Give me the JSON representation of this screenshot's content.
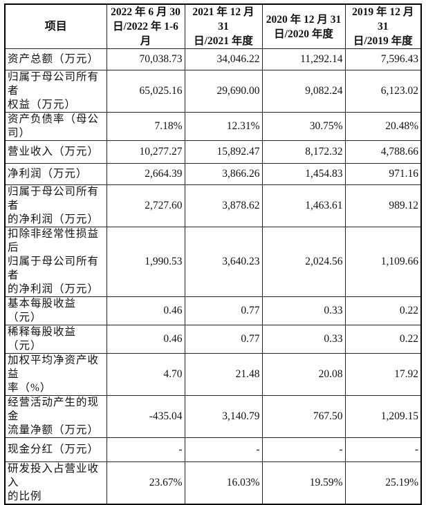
{
  "header": {
    "item": "项目",
    "periods": [
      [
        "2022 年 6 月 30",
        "日/2022 年 1-6 月"
      ],
      [
        "2021 年 12 月 31",
        "日/2021 年度"
      ],
      [
        "2020 年 12 月 31",
        "日/2020 年度"
      ],
      [
        "2019 年 12 月 31",
        "日/2019 年度"
      ]
    ]
  },
  "rows": [
    {
      "label": [
        "资产总额（万元）"
      ],
      "values": [
        "70,038.73",
        "34,046.22",
        "11,292.14",
        "7,596.43"
      ]
    },
    {
      "label": [
        "归属于母公司所有者",
        "权益（万元）"
      ],
      "values": [
        "65,025.16",
        "29,690.00",
        "9,082.24",
        "6,123.02"
      ]
    },
    {
      "label": [
        "资产负债率（母公司）"
      ],
      "values": [
        "7.18%",
        "12.31%",
        "30.75%",
        "20.48%"
      ]
    },
    {
      "label": [
        "营业收入（万元）"
      ],
      "values": [
        "10,277.27",
        "15,892.47",
        "8,172.32",
        "4,788.66"
      ]
    },
    {
      "label": [
        "净利润（万元）"
      ],
      "values": [
        "2,664.39",
        "3,866.26",
        "1,454.83",
        "971.16"
      ]
    },
    {
      "label": [
        "归属于母公司所有者",
        "的净利润（万元）"
      ],
      "values": [
        "2,727.60",
        "3,878.62",
        "1,463.61",
        "989.12"
      ]
    },
    {
      "label": [
        "扣除非经常性损益后",
        "归属于母公司所有者",
        "的净利润（万元）"
      ],
      "values": [
        "1,990.53",
        "3,640.23",
        "2,024.56",
        "1,109.66"
      ]
    },
    {
      "label": [
        "基本每股收益（元）"
      ],
      "values": [
        "0.46",
        "0.77",
        "0.33",
        "0.22"
      ]
    },
    {
      "label": [
        "稀释每股收益（元）"
      ],
      "values": [
        "0.46",
        "0.77",
        "0.33",
        "0.22"
      ]
    },
    {
      "label": [
        "加权平均净资产收益",
        "率（%）"
      ],
      "values": [
        "4.70",
        "21.48",
        "20.08",
        "17.92"
      ]
    },
    {
      "label": [
        "经营活动产生的现金",
        "流量净额（万元）"
      ],
      "values": [
        "-435.04",
        "3,140.79",
        "767.50",
        "1,209.15"
      ]
    },
    {
      "label": [
        "现金分红（万元）"
      ],
      "values": [
        "-",
        "-",
        "-",
        "-"
      ]
    },
    {
      "label": [
        "研发投入占营业收入",
        "的比例"
      ],
      "values": [
        "23.67%",
        "16.03%",
        "19.59%",
        "25.19%"
      ]
    }
  ]
}
